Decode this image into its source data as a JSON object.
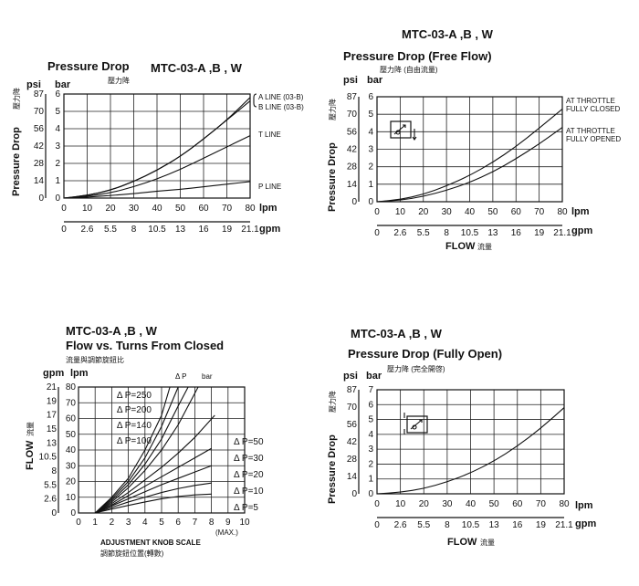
{
  "charts": [
    {
      "id": "c1",
      "title_line": "Pressure Drop",
      "model": "MTC-03-A ,B , W",
      "subtitle_cn": "壓力降",
      "y_unit_left": "psi",
      "y_unit_right": "bar",
      "ylabel": "Pressure Drop",
      "ylabel_cn": "壓力降",
      "x_unit_top": "lpm",
      "x_unit_bottom": "gpm",
      "xlabel": "",
      "psi_ticks": [
        "87",
        "70",
        "56",
        "42",
        "28",
        "14",
        "0"
      ],
      "bar_ticks": [
        "6",
        "5",
        "4",
        "3",
        "2",
        "1",
        "0"
      ],
      "lpm_ticks": [
        "0",
        "10",
        "20",
        "30",
        "40",
        "50",
        "60",
        "70",
        "80"
      ],
      "gpm_ticks": [
        "0",
        "2.6",
        "5.5",
        "8",
        "10.5",
        "13",
        "16",
        "19",
        "21.1"
      ],
      "annotations": [
        "A LINE (03-B)",
        "B LINE (03-B)",
        "T LINE",
        "P LINE"
      ]
    },
    {
      "id": "c2",
      "model": "MTC-03-A ,B , W",
      "title_line": "Pressure Drop (Free Flow)",
      "subtitle_cn": "壓力降 (自由流量)",
      "y_unit_left": "psi",
      "y_unit_right": "bar",
      "ylabel": "Pressure Drop",
      "ylabel_cn": "壓力降",
      "x_unit_top": "lpm",
      "x_unit_bottom": "gpm",
      "xlabel": "FLOW",
      "xlabel_cn": "流量",
      "psi_ticks": [
        "87",
        "70",
        "56",
        "42",
        "28",
        "14",
        "0"
      ],
      "bar_ticks": [
        "6",
        "5",
        "4",
        "3",
        "2",
        "1",
        "0"
      ],
      "lpm_ticks": [
        "0",
        "10",
        "20",
        "30",
        "40",
        "50",
        "60",
        "70",
        "80"
      ],
      "gpm_ticks": [
        "0",
        "2.6",
        "5.5",
        "8",
        "10.5",
        "13",
        "16",
        "19",
        "21.1"
      ],
      "annotations": [
        "AT THROTTLE",
        "FULLY CLOSED",
        "AT THROTTLE",
        "FULLY OPENED"
      ]
    },
    {
      "id": "c3",
      "model": "MTC-03-A ,B , W",
      "title_line": "Flow vs. Turns From Closed",
      "subtitle_cn": "流量與調節旋鈕比",
      "y_unit_left": "gpm",
      "y_unit_right": "lpm",
      "ylabel": "FLOW",
      "ylabel_cn": "流量",
      "dp_label": "Δ P",
      "bar_label": "bar",
      "gpm_ticks": [
        "21",
        "19",
        "17",
        "15",
        "13",
        "10.5",
        "8",
        "5.5",
        "2.6",
        "0"
      ],
      "lpm_ticks": [
        "80",
        "70",
        "60",
        "50",
        "40",
        "30",
        "20",
        "10",
        "0"
      ],
      "x_ticks": [
        "0",
        "1",
        "2",
        "3",
        "4",
        "5",
        "6",
        "7",
        "8",
        "9",
        "10"
      ],
      "max_label": "(MAX.)",
      "xlabel": "ADJUSTMENT KNOB SCALE",
      "xlabel_cn": "調節旋鈕位置(轉數)",
      "left_labels": [
        "Δ P=250",
        "Δ P=200",
        "Δ P=140",
        "Δ P=100"
      ],
      "right_labels": [
        "Δ P=50",
        "Δ P=30",
        "Δ P=20",
        "Δ P=10",
        "Δ P=5"
      ]
    },
    {
      "id": "c4",
      "model": "MTC-03-A ,B , W",
      "title_line": "Pressure Drop (Fully Open)",
      "subtitle_cn": "壓力降 (完全開啓)",
      "y_unit_left": "psi",
      "y_unit_right": "bar",
      "ylabel": "Pressure Drop",
      "ylabel_cn": "壓力降",
      "x_unit_top": "lpm",
      "x_unit_bottom": "gpm",
      "xlabel": "FLOW",
      "xlabel_cn": "流量",
      "psi_ticks": [
        "87",
        "70",
        "56",
        "42",
        "28",
        "14",
        "0"
      ],
      "bar_ticks": [
        "7",
        "6",
        "5",
        "4",
        "3",
        "2",
        "1",
        "0"
      ],
      "lpm_ticks": [
        "0",
        "10",
        "20",
        "30",
        "40",
        "50",
        "60",
        "70",
        "80"
      ],
      "gpm_ticks": [
        "0",
        "2.6",
        "5.5",
        "8",
        "10.5",
        "13",
        "16",
        "19",
        "21.1"
      ]
    }
  ],
  "chart_data": [
    {
      "type": "line",
      "title": "Pressure Drop",
      "xlabel": "lpm",
      "ylabel": "Pressure Drop (bar)",
      "xlim": [
        0,
        80
      ],
      "ylim": [
        0,
        6
      ],
      "grid": true,
      "series": [
        {
          "name": "A LINE (03-B)",
          "x": [
            0,
            10,
            20,
            30,
            40,
            50,
            60,
            70,
            80
          ],
          "y": [
            0,
            0.15,
            0.45,
            0.95,
            1.6,
            2.4,
            3.4,
            4.5,
            5.8
          ]
        },
        {
          "name": "B LINE (03-B)",
          "x": [
            0,
            10,
            20,
            30,
            40,
            50,
            60,
            70,
            80
          ],
          "y": [
            0,
            0.15,
            0.45,
            0.95,
            1.6,
            2.4,
            3.4,
            4.5,
            5.6
          ]
        },
        {
          "name": "T LINE",
          "x": [
            0,
            10,
            20,
            30,
            40,
            50,
            60,
            70,
            80
          ],
          "y": [
            0,
            0.1,
            0.3,
            0.65,
            1.1,
            1.65,
            2.3,
            2.95,
            3.6
          ]
        },
        {
          "name": "P LINE",
          "x": [
            0,
            10,
            20,
            30,
            40,
            50,
            60,
            70,
            80
          ],
          "y": [
            0,
            0.05,
            0.15,
            0.25,
            0.4,
            0.5,
            0.65,
            0.8,
            0.95
          ]
        }
      ]
    },
    {
      "type": "line",
      "title": "Pressure Drop (Free Flow)",
      "xlabel": "FLOW (lpm)",
      "ylabel": "Pressure Drop (bar)",
      "xlim": [
        0,
        80
      ],
      "ylim": [
        0,
        6
      ],
      "grid": true,
      "series": [
        {
          "name": "AT THROTTLE FULLY CLOSED",
          "x": [
            0,
            10,
            20,
            30,
            40,
            50,
            60,
            70,
            80
          ],
          "y": [
            0,
            0.12,
            0.42,
            0.9,
            1.5,
            2.25,
            3.15,
            4.2,
            5.3
          ]
        },
        {
          "name": "AT THROTTLE FULLY OPENED",
          "x": [
            0,
            10,
            20,
            30,
            40,
            50,
            60,
            70,
            80
          ],
          "y": [
            0,
            0.08,
            0.3,
            0.65,
            1.1,
            1.7,
            2.45,
            3.3,
            4.25
          ]
        }
      ]
    },
    {
      "type": "line",
      "title": "Flow vs. Turns From Closed",
      "xlabel": "ADJUSTMENT KNOB SCALE",
      "ylabel": "FLOW (lpm)",
      "xlim": [
        0,
        10
      ],
      "ylim": [
        0,
        80
      ],
      "grid": true,
      "series": [
        {
          "name": "Δ P=250",
          "x": [
            1,
            2,
            3,
            4,
            5,
            5.5
          ],
          "y": [
            0,
            10,
            22,
            40,
            62,
            80
          ]
        },
        {
          "name": "Δ P=200",
          "x": [
            1,
            2,
            3,
            4,
            5,
            6
          ],
          "y": [
            0,
            9,
            20,
            35,
            55,
            80
          ]
        },
        {
          "name": "Δ P=140",
          "x": [
            1,
            2,
            3,
            4,
            5,
            6,
            6.6
          ],
          "y": [
            0,
            8,
            18,
            31,
            47,
            68,
            80
          ]
        },
        {
          "name": "Δ P=100",
          "x": [
            1,
            2,
            3,
            4,
            5,
            6,
            7.2
          ],
          "y": [
            0,
            7,
            16,
            27,
            40,
            56,
            80
          ]
        },
        {
          "name": "Δ P=50",
          "x": [
            1,
            2,
            3,
            4,
            5,
            6,
            7,
            8.2
          ],
          "y": [
            0,
            6,
            13,
            21,
            29,
            38,
            48,
            62
          ]
        },
        {
          "name": "Δ P=30",
          "x": [
            1,
            2,
            3,
            4,
            5,
            6,
            7,
            8
          ],
          "y": [
            0,
            5,
            11,
            17,
            23,
            29,
            35,
            41
          ]
        },
        {
          "name": "Δ P=20",
          "x": [
            1,
            2,
            3,
            4,
            5,
            6,
            7,
            8
          ],
          "y": [
            0,
            4.5,
            9,
            13.5,
            18,
            22,
            26,
            30
          ]
        },
        {
          "name": "Δ P=10",
          "x": [
            1,
            2,
            3,
            4,
            5,
            6,
            7,
            8
          ],
          "y": [
            0,
            3.5,
            7,
            10,
            13,
            15.5,
            17.5,
            19
          ]
        },
        {
          "name": "Δ P=5",
          "x": [
            1,
            2,
            3,
            4,
            5,
            6,
            7,
            8
          ],
          "y": [
            0,
            2.5,
            4.8,
            7,
            9,
            10.5,
            11.5,
            12
          ]
        }
      ]
    },
    {
      "type": "line",
      "title": "Pressure Drop (Fully Open)",
      "xlabel": "FLOW (lpm)",
      "ylabel": "Pressure Drop (bar)",
      "xlim": [
        0,
        80
      ],
      "ylim": [
        0,
        7
      ],
      "grid": true,
      "series": [
        {
          "name": "",
          "x": [
            0,
            10,
            20,
            30,
            40,
            50,
            60,
            70,
            80
          ],
          "y": [
            0,
            0.1,
            0.35,
            0.8,
            1.4,
            2.2,
            3.2,
            4.4,
            5.8
          ]
        }
      ]
    }
  ]
}
